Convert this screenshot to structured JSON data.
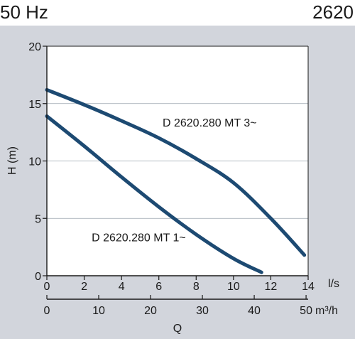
{
  "header": {
    "left": "50 Hz",
    "right": "2620"
  },
  "chart_data": {
    "type": "line",
    "ylabel": "H (m)",
    "ylim": [
      0,
      20
    ],
    "yticks": [
      0,
      5,
      10,
      15,
      20
    ],
    "x_axis_primary": {
      "unit": "l/s",
      "ticks": [
        0,
        2,
        4,
        6,
        8,
        10,
        12,
        14
      ],
      "range": [
        0,
        14
      ]
    },
    "x_axis_secondary": {
      "unit": "m³/h",
      "ticks": [
        0,
        10,
        20,
        30,
        40,
        50
      ],
      "range": [
        0,
        50.4
      ]
    },
    "xlabel": "Q",
    "grid": "horizontal",
    "series": [
      {
        "name": "D 2620.280 MT 3~",
        "color": "#1d4a72",
        "points": [
          [
            0,
            16.2
          ],
          [
            2,
            14.9
          ],
          [
            4,
            13.5
          ],
          [
            6,
            12.0
          ],
          [
            8,
            10.2
          ],
          [
            10,
            8.1
          ],
          [
            12,
            5.0
          ],
          [
            13.8,
            1.8
          ]
        ]
      },
      {
        "name": "D 2620.280 MT 1~",
        "color": "#1d4a72",
        "points": [
          [
            0,
            13.9
          ],
          [
            2,
            11.3
          ],
          [
            4,
            8.6
          ],
          [
            6,
            6.0
          ],
          [
            8,
            3.6
          ],
          [
            10,
            1.5
          ],
          [
            11.5,
            0.3
          ]
        ]
      }
    ],
    "annotations": [
      {
        "series": 0,
        "text": "D 2620.280 MT 3~",
        "x": 6.2,
        "y": 13.0
      },
      {
        "series": 1,
        "text": "D 2620.280 MT 1~",
        "x": 2.4,
        "y": 3.0
      }
    ]
  }
}
